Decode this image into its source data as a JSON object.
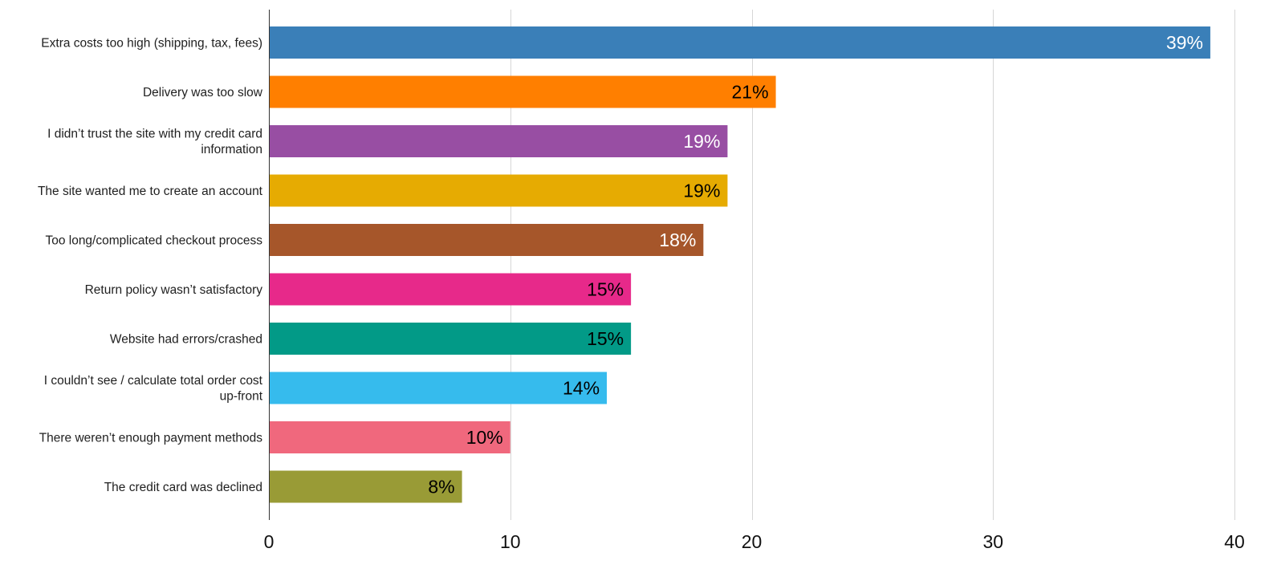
{
  "chart_data": {
    "type": "bar",
    "orientation": "horizontal",
    "categories": [
      "Extra costs too high (shipping, tax, fees)",
      "Delivery was too slow",
      "I didn’t trust the site with my credit card information",
      "The site wanted me to create an account",
      "Too long/complicated checkout process",
      "Return policy wasn’t satisfactory",
      "Website had errors/crashed",
      "I couldn’t see / calculate total order cost up-front",
      "There weren’t enough payment methods",
      "The credit card was declined"
    ],
    "category_label_lines": [
      [
        "Extra costs too high (shipping, tax, fees)"
      ],
      [
        "Delivery was too slow"
      ],
      [
        "I didn’t trust the site with my credit card",
        "information"
      ],
      [
        "The site wanted me to create an account"
      ],
      [
        "Too long/complicated checkout process"
      ],
      [
        "Return policy wasn’t satisfactory"
      ],
      [
        "Website had errors/crashed"
      ],
      [
        "I couldn’t see / calculate total order cost",
        "up-front"
      ],
      [
        "There weren’t enough payment methods"
      ],
      [
        "The credit card was declined"
      ]
    ],
    "values": [
      39,
      21,
      19,
      19,
      18,
      15,
      15,
      14,
      10,
      8
    ],
    "data_labels": [
      "39%",
      "21%",
      "19%",
      "19%",
      "18%",
      "15%",
      "15%",
      "14%",
      "10%",
      "8%"
    ],
    "bar_colors": [
      "#3a7fb8",
      "#ff7f00",
      "#984ea3",
      "#e6ab02",
      "#a6562a",
      "#e7298a",
      "#029a87",
      "#36bbed",
      "#f0687d",
      "#999b36"
    ],
    "label_colors": [
      "#ffffff",
      "#000000",
      "#ffffff",
      "#000000",
      "#ffffff",
      "#000000",
      "#000000",
      "#000000",
      "#000000",
      "#000000"
    ],
    "xlim": [
      0,
      40
    ],
    "xticks": [
      0,
      10,
      20,
      30,
      40
    ],
    "xtick_labels": [
      "0",
      "10",
      "20",
      "30",
      "40"
    ],
    "grid": true,
    "legend": "none",
    "title": "",
    "xlabel": "",
    "ylabel": ""
  }
}
